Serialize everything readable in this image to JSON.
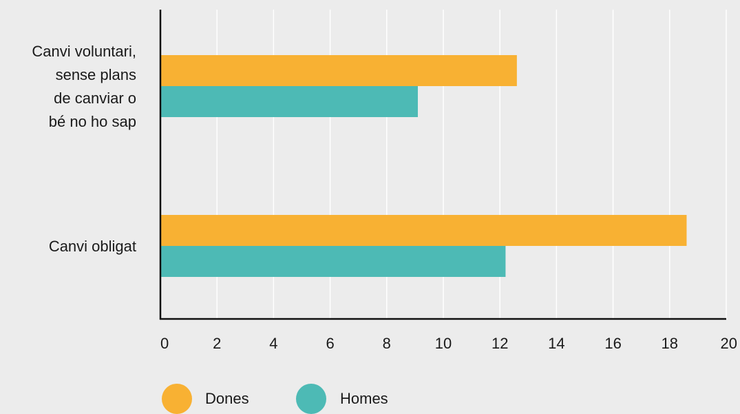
{
  "chart_data": {
    "type": "bar",
    "orientation": "horizontal",
    "categories": [
      "Canvi voluntari, sense plans de canviar o bé no ho sap",
      "Canvi obligat"
    ],
    "category_lines": [
      [
        "Canvi voluntari,",
        "sense plans",
        "de canviar o",
        "bé no ho sap"
      ],
      [
        "Canvi obligat"
      ]
    ],
    "series": [
      {
        "name": "Dones",
        "values": [
          12.6,
          18.6
        ],
        "color": "#f8b133"
      },
      {
        "name": "Homes",
        "values": [
          9.1,
          12.2
        ],
        "color": "#4dbab5"
      }
    ],
    "xlim": [
      0,
      20
    ],
    "xticks": [
      "0",
      "2",
      "4",
      "6",
      "8",
      "10",
      "12",
      "14",
      "16",
      "18",
      "20"
    ],
    "grid": true,
    "legend_position": "bottom",
    "title": "",
    "xlabel": "",
    "ylabel": ""
  }
}
